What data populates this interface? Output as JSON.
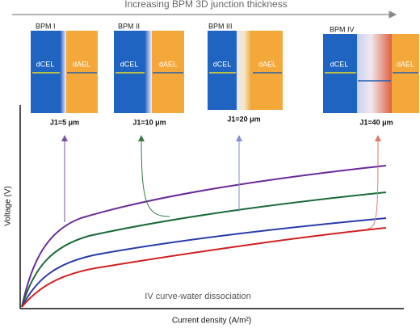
{
  "header": {
    "title": "Increasing BPM 3D junction thickness"
  },
  "panels": [
    {
      "label": "BPM I",
      "cel": "dCEL",
      "ael": "dAEL",
      "thickness": "J1=5 μm"
    },
    {
      "label": "BPM II",
      "cel": "dCEL",
      "ael": "dAEL",
      "thickness": "J1=10 μm"
    },
    {
      "label": "BPM III",
      "cel": "dCEL",
      "ael": "dAEL",
      "thickness": "J1=20 μm"
    },
    {
      "label": "BPM IV",
      "cel": "dCEL",
      "ael": "dAEL",
      "thickness": "J1=40 μm"
    }
  ],
  "plot": {
    "y_label": "Voltage (V)",
    "x_label": "Current density (A/m²)",
    "caption": "IV curve-water dissociation"
  }
}
